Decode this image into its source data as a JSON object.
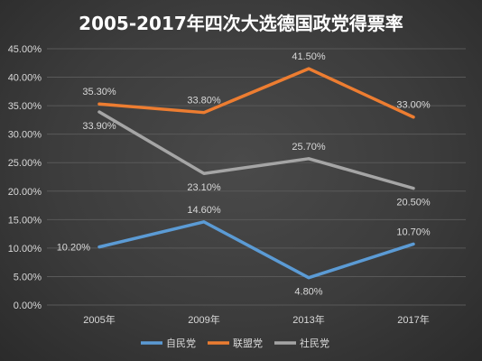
{
  "chart_data": {
    "type": "line",
    "title": "2005-2017年四次大选德国政党得票率",
    "categories": [
      "2005年",
      "2009年",
      "2013年",
      "2017年"
    ],
    "y_ticks": [
      "0.00%",
      "5.00%",
      "10.00%",
      "15.00%",
      "20.00%",
      "25.00%",
      "30.00%",
      "35.00%",
      "40.00%",
      "45.00%"
    ],
    "ylim": [
      0,
      45
    ],
    "grid": true,
    "legend_position": "bottom",
    "series": [
      {
        "name": "自民党",
        "color": "#5b9bd5",
        "values": [
          10.2,
          14.6,
          4.8,
          10.7
        ],
        "labels": [
          "10.20%",
          "14.60%",
          "4.80%",
          "10.70%"
        ]
      },
      {
        "name": "联盟党",
        "color": "#ed7d31",
        "values": [
          35.3,
          33.8,
          41.5,
          33.0
        ],
        "labels": [
          "35.30%",
          "33.80%",
          "41.50%",
          "33.00%"
        ]
      },
      {
        "name": "社民党",
        "color": "#a5a5a5",
        "values": [
          33.9,
          23.1,
          25.7,
          20.5
        ],
        "labels": [
          "33.90%",
          "23.10%",
          "25.70%",
          "20.50%"
        ]
      }
    ]
  }
}
